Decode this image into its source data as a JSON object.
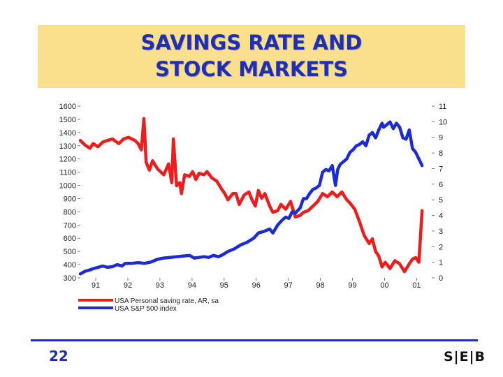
{
  "title": {
    "line1": "SAVINGS RATE AND",
    "line2": "STOCK MARKETS"
  },
  "footer": {
    "page_number": "22",
    "logo": "S|E|B"
  },
  "chart_data": {
    "type": "line",
    "x_ticks": [
      "91",
      "92",
      "93",
      "94",
      "95",
      "96",
      "97",
      "98",
      "99",
      "00",
      "01"
    ],
    "x_range": [
      1990.6,
      2001.55
    ],
    "y_left": {
      "ticks": [
        300,
        400,
        500,
        600,
        700,
        800,
        900,
        1000,
        1100,
        1200,
        1300,
        1400,
        1500,
        1600
      ],
      "range": [
        300,
        1600
      ]
    },
    "y_right": {
      "ticks": [
        0,
        1,
        2,
        3,
        4,
        5,
        6,
        7,
        8,
        9,
        10,
        11
      ],
      "range": [
        0,
        11
      ]
    },
    "grid": false,
    "legend_position": "bottom-left",
    "series": [
      {
        "name": "USA Personal saving rate, AR, sa",
        "axis": "right",
        "color": "#ee1c1c",
        "x": [
          1990.6,
          1990.75,
          1990.9,
          1991.0,
          1991.15,
          1991.3,
          1991.45,
          1991.6,
          1991.8,
          1991.95,
          1992.1,
          1992.3,
          1992.4,
          1992.5,
          1992.58,
          1992.65,
          1992.75,
          1992.85,
          1993.0,
          1993.2,
          1993.35,
          1993.45,
          1993.5,
          1993.6,
          1993.7,
          1993.75,
          1993.85,
          1994.0,
          1994.1,
          1994.2,
          1994.3,
          1994.45,
          1994.55,
          1994.7,
          1994.85,
          1995.0,
          1995.1,
          1995.2,
          1995.35,
          1995.45,
          1995.55,
          1995.7,
          1995.85,
          1995.95,
          1996.05,
          1996.15,
          1996.25,
          1996.35,
          1996.5,
          1996.6,
          1996.75,
          1996.85,
          1997.0,
          1997.15,
          1997.3,
          1997.45,
          1997.55,
          1997.7,
          1997.85,
          1998.0,
          1998.15,
          1998.3,
          1998.45,
          1998.6,
          1998.75,
          1998.9,
          1999.0,
          1999.15,
          1999.3,
          1999.45,
          1999.6,
          1999.7,
          1999.8,
          1999.9,
          2000.0,
          2000.1,
          2000.25,
          2000.4,
          2000.55,
          2000.7,
          2000.85,
          2000.95,
          2001.05,
          2001.15,
          2001.25
        ],
        "y": [
          8.8,
          8.5,
          8.3,
          8.6,
          8.4,
          8.7,
          8.8,
          8.9,
          8.6,
          8.9,
          9.0,
          8.8,
          8.6,
          8.2,
          10.2,
          7.4,
          6.9,
          7.5,
          7.0,
          6.6,
          7.3,
          6.1,
          8.9,
          5.9,
          6.1,
          5.4,
          6.6,
          6.5,
          6.8,
          6.3,
          6.7,
          6.6,
          6.8,
          6.4,
          6.2,
          5.7,
          5.4,
          5.0,
          5.4,
          5.4,
          4.7,
          5.3,
          5.5,
          5.0,
          4.6,
          5.6,
          5.1,
          5.4,
          4.6,
          4.2,
          4.3,
          4.7,
          4.4,
          4.9,
          3.9,
          4.0,
          4.2,
          4.3,
          4.6,
          4.9,
          5.4,
          5.2,
          5.5,
          5.2,
          5.5,
          5.0,
          4.8,
          4.4,
          3.6,
          2.7,
          2.2,
          2.5,
          1.7,
          1.4,
          0.7,
          1.0,
          0.6,
          1.1,
          0.9,
          0.4,
          0.9,
          1.2,
          1.3,
          1.0,
          4.3
        ]
      },
      {
        "name": "USA S&P 500 index",
        "axis": "left",
        "color": "#1c2bd6",
        "x": [
          1990.6,
          1990.75,
          1990.9,
          1991.0,
          1991.15,
          1991.3,
          1991.45,
          1991.6,
          1991.75,
          1991.9,
          1992.0,
          1992.2,
          1992.4,
          1992.6,
          1992.8,
          1993.0,
          1993.2,
          1993.4,
          1993.6,
          1993.8,
          1994.0,
          1994.15,
          1994.3,
          1994.45,
          1994.6,
          1994.75,
          1994.9,
          1995.0,
          1995.2,
          1995.4,
          1995.6,
          1995.8,
          1996.0,
          1996.15,
          1996.3,
          1996.4,
          1996.5,
          1996.6,
          1996.75,
          1996.9,
          1997.0,
          1997.1,
          1997.2,
          1997.3,
          1997.45,
          1997.55,
          1997.65,
          1997.75,
          1997.85,
          1997.95,
          1998.05,
          1998.15,
          1998.25,
          1998.35,
          1998.45,
          1998.55,
          1998.62,
          1998.7,
          1998.8,
          1998.9,
          1999.0,
          1999.1,
          1999.2,
          1999.3,
          1999.4,
          1999.5,
          1999.6,
          1999.7,
          1999.8,
          1999.9,
          2000.0,
          2000.05,
          2000.15,
          2000.25,
          2000.35,
          2000.45,
          2000.55,
          2000.65,
          2000.75,
          2000.85,
          2000.95,
          2001.05,
          2001.15,
          2001.25
        ],
        "y": [
          330,
          350,
          360,
          370,
          380,
          390,
          380,
          385,
          400,
          390,
          410,
          410,
          415,
          410,
          420,
          440,
          450,
          455,
          460,
          465,
          470,
          450,
          455,
          460,
          455,
          470,
          460,
          470,
          500,
          520,
          550,
          570,
          600,
          640,
          650,
          660,
          670,
          640,
          700,
          740,
          760,
          750,
          800,
          790,
          830,
          900,
          900,
          940,
          970,
          980,
          1000,
          1100,
          1120,
          1110,
          1150,
          1000,
          1120,
          1160,
          1180,
          1200,
          1250,
          1270,
          1300,
          1310,
          1330,
          1300,
          1380,
          1400,
          1360,
          1420,
          1470,
          1440,
          1460,
          1480,
          1430,
          1470,
          1440,
          1360,
          1350,
          1420,
          1280,
          1250,
          1200,
          1150
        ]
      }
    ]
  }
}
